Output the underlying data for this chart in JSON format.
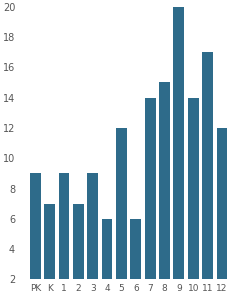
{
  "categories": [
    "PK",
    "K",
    "1",
    "2",
    "3",
    "4",
    "5",
    "6",
    "7",
    "8",
    "9",
    "10",
    "11",
    "12"
  ],
  "values": [
    9,
    7,
    9,
    7,
    9,
    6,
    12,
    6,
    14,
    15,
    20,
    14,
    17,
    12
  ],
  "bar_color": "#2e6b8a",
  "background_color": "#ffffff",
  "ylim": [
    2,
    20
  ],
  "yticks": [
    2,
    4,
    6,
    8,
    10,
    12,
    14,
    16,
    18,
    20
  ],
  "bar_width": 0.75
}
